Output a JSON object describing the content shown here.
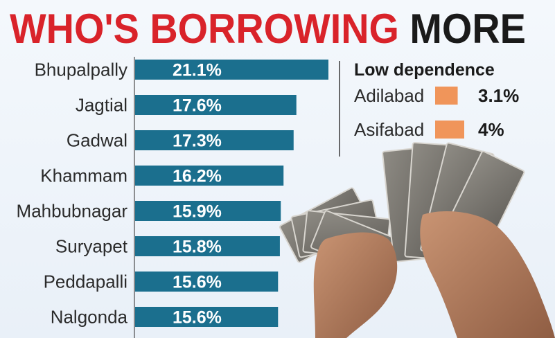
{
  "title": {
    "part1": "WHO'S BORROWING",
    "part2": "MORE"
  },
  "colors": {
    "bar": "#1b6f8e",
    "low_bar": "#f0955a",
    "title_red": "#d9232a"
  },
  "chart_data": {
    "type": "bar",
    "orientation": "horizontal",
    "categories": [
      "Bhupalpally",
      "Jagtial",
      "Gadwal",
      "Khammam",
      "Mahbubnagar",
      "Suryapet",
      "Peddapalli",
      "Nalgonda"
    ],
    "values": [
      21.1,
      17.6,
      17.3,
      16.2,
      15.9,
      15.8,
      15.6,
      15.6
    ],
    "value_labels": [
      "21.1%",
      "17.6%",
      "17.3%",
      "16.2%",
      "15.9%",
      "15.8%",
      "15.6%",
      "15.6%"
    ],
    "unit": "%",
    "xlim": [
      0,
      21.1
    ],
    "grid": false
  },
  "low_dependence": {
    "heading": "Low dependence",
    "items": [
      {
        "name": "Adilabad",
        "value": 3.1,
        "label": "3.1%"
      },
      {
        "name": "Asifabad",
        "value": 4,
        "label": "4%"
      }
    ]
  },
  "illustration": "hands-holding-rupee-notes"
}
